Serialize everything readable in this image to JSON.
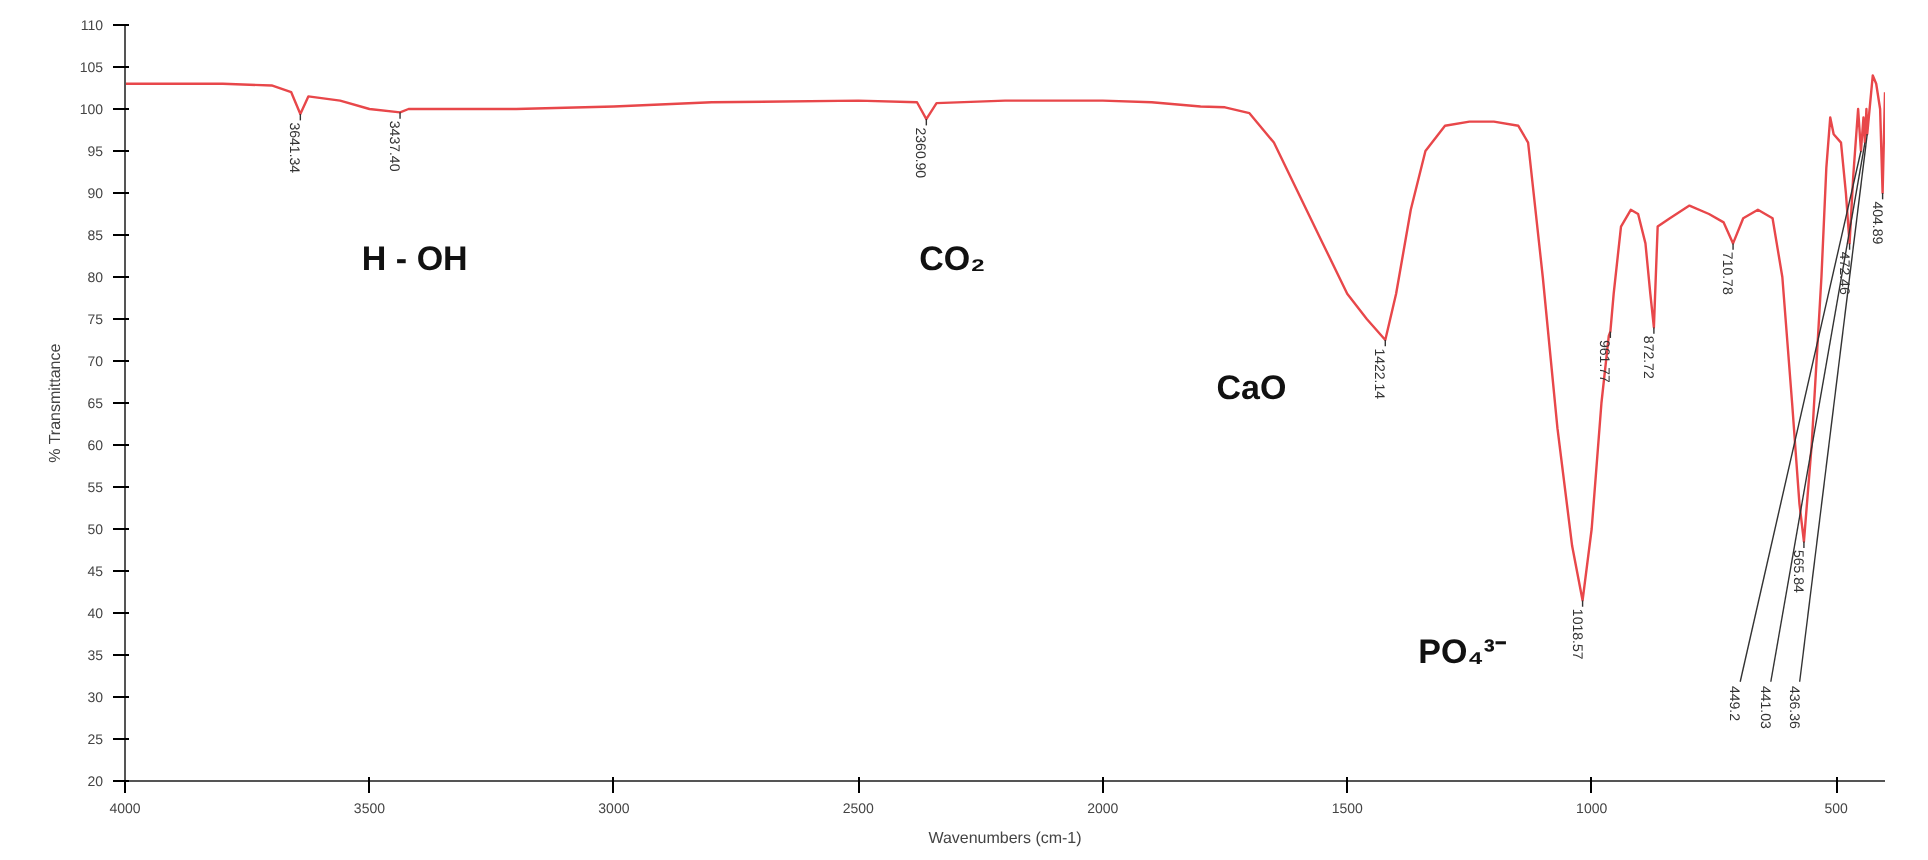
{
  "chart_data": {
    "type": "line",
    "xlabel": "Wavenumbers (cm-1)",
    "ylabel": "% Transmittance",
    "xlim": [
      4000,
      400
    ],
    "ylim": [
      20,
      110
    ],
    "xticks": [
      4000,
      3500,
      3000,
      2500,
      2000,
      1500,
      1000,
      500
    ],
    "yticks": [
      20,
      25,
      30,
      35,
      40,
      45,
      50,
      55,
      60,
      65,
      70,
      75,
      80,
      85,
      90,
      95,
      100,
      105,
      110
    ],
    "grid": false,
    "marker": "none",
    "line_style": "solid",
    "series": [
      {
        "color": "#e8474a",
        "x": [
          4000,
          3800,
          3700,
          3660,
          3641.34,
          3625,
          3560,
          3500,
          3437.4,
          3420,
          3200,
          3000,
          2800,
          2500,
          2380,
          2360.9,
          2340,
          2200,
          2000,
          1900,
          1800,
          1750,
          1700,
          1650,
          1600,
          1550,
          1500,
          1460,
          1422.14,
          1400,
          1370,
          1340,
          1300,
          1250,
          1200,
          1150,
          1130,
          1100,
          1070,
          1040,
          1018.57,
          1000,
          980,
          965,
          961.77,
          955,
          940,
          920,
          905,
          890,
          880,
          872.72,
          865,
          840,
          800,
          760,
          730,
          710.78,
          690,
          660,
          630,
          610,
          590,
          575,
          565.84,
          550,
          530,
          520,
          512,
          505,
          490,
          480,
          472.46,
          465,
          455,
          449.2,
          444,
          441.03,
          438,
          436.36,
          425,
          418,
          410,
          404.89,
          400
        ],
        "values": [
          103,
          103,
          102.8,
          102,
          99.4,
          101.5,
          101,
          100,
          99.6,
          100,
          100,
          100.3,
          100.8,
          101,
          100.8,
          98.8,
          100.7,
          101,
          101,
          100.8,
          100.3,
          100.2,
          99.5,
          96,
          90,
          84,
          78,
          75,
          72.5,
          78,
          88,
          95,
          98,
          98.5,
          98.5,
          98,
          96,
          80,
          62,
          48,
          41.5,
          50,
          65,
          73,
          73.5,
          78,
          86,
          88,
          87.5,
          84,
          78,
          74,
          86,
          87,
          88.5,
          87.5,
          86.5,
          84,
          87,
          88,
          87,
          80,
          65,
          53,
          48.5,
          60,
          80,
          93,
          99,
          97,
          96,
          90,
          84,
          92,
          100,
          95,
          99,
          96,
          100,
          97,
          104,
          103,
          100,
          90,
          102
        ]
      }
    ],
    "annotations": [
      "H  -  OH",
      "CO₂",
      "CaO",
      "PO₄³⁻",
      {
        "text": "3641.34",
        "x": 3641.34,
        "y": 99.4
      },
      {
        "text": "3437.40",
        "x": 3437.4,
        "y": 99.6
      },
      {
        "text": "2360.90",
        "x": 2360.9,
        "y": 98.8
      },
      {
        "text": "1422.14",
        "x": 1422.14,
        "y": 72.5
      },
      {
        "text": "1018.57",
        "x": 1018.57,
        "y": 41.5
      },
      {
        "text": "961.77",
        "x": 961.77,
        "y": 73.5
      },
      {
        "text": "872.72",
        "x": 872.72,
        "y": 74
      },
      {
        "text": "710.78",
        "x": 710.78,
        "y": 84
      },
      {
        "text": "565.84",
        "x": 565.84,
        "y": 48.5
      },
      {
        "text": "472.46",
        "x": 472.46,
        "y": 84
      },
      {
        "text": "449.2",
        "x": 449.2,
        "y": 95
      },
      {
        "text": "441.03",
        "x": 441.03,
        "y": 96
      },
      {
        "text": "436.36",
        "x": 436.36,
        "y": 97
      },
      {
        "text": "404.89",
        "x": 404.89,
        "y": 90
      }
    ]
  }
}
